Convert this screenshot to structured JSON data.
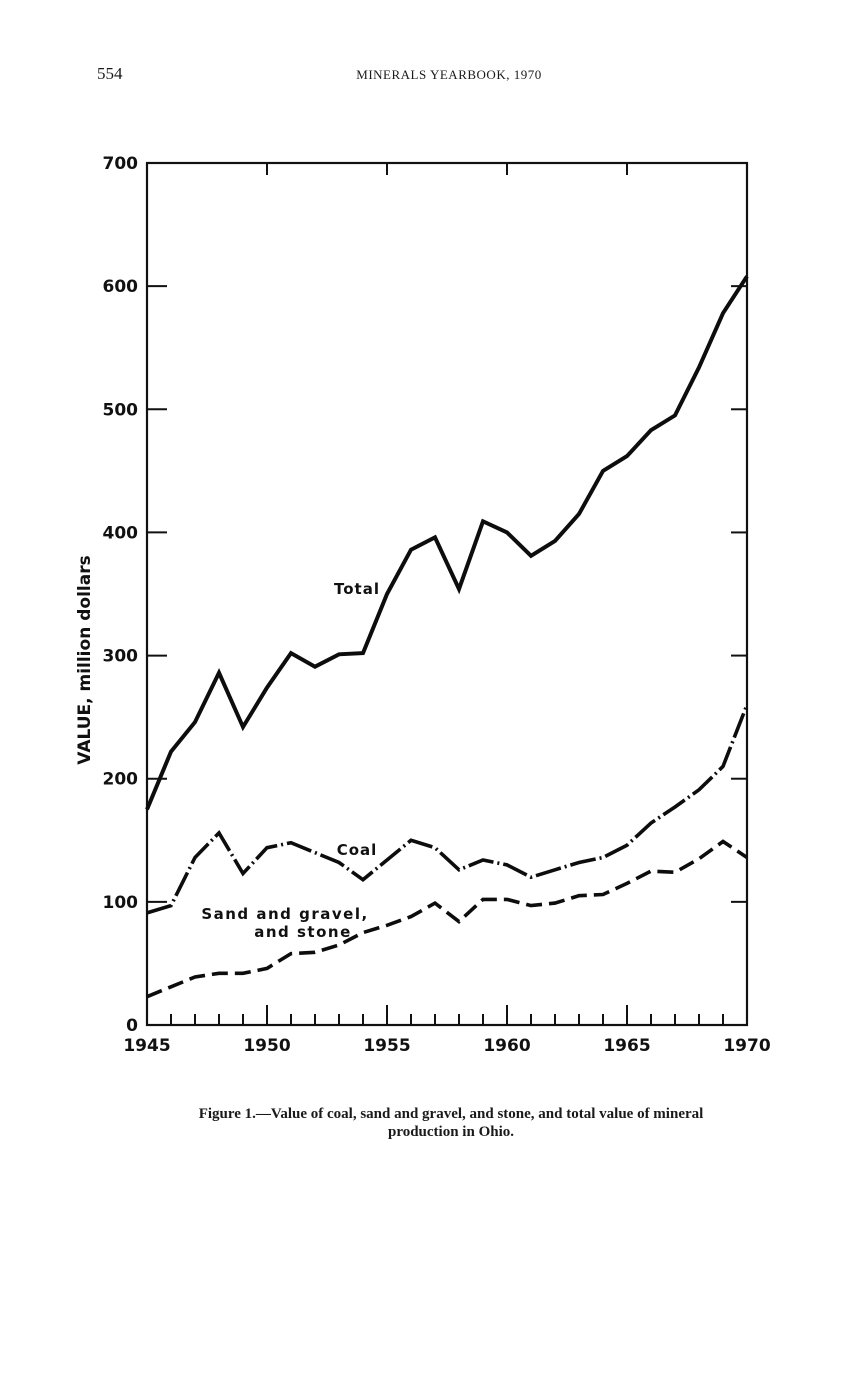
{
  "header": {
    "page_number": "554",
    "running_title": "MINERALS YEARBOOK, 1970"
  },
  "caption": {
    "line1": "Figure 1.—Value of coal, sand and gravel, and stone, and total value of mineral",
    "line2": "production in Ohio."
  },
  "chart_data": {
    "type": "line",
    "title": "Value of coal, sand and gravel, and stone, and total value of mineral production in Ohio",
    "xlabel": "",
    "ylabel": "VALUE, million dollars",
    "xlim": [
      1945,
      1970
    ],
    "ylim": [
      0,
      700
    ],
    "x_ticks": [
      "1945",
      "1950",
      "1955",
      "1960",
      "1965",
      "1970"
    ],
    "y_ticks": [
      "0",
      "100",
      "200",
      "300",
      "400",
      "500",
      "600",
      "700"
    ],
    "grid": false,
    "x": [
      1945,
      1946,
      1947,
      1948,
      1949,
      1950,
      1951,
      1952,
      1953,
      1954,
      1955,
      1956,
      1957,
      1958,
      1959,
      1960,
      1961,
      1962,
      1963,
      1964,
      1965,
      1966,
      1967,
      1968,
      1969,
      1970
    ],
    "series": [
      {
        "name": "Total",
        "label": "Total",
        "style": "solid",
        "values": [
          175,
          222,
          246,
          286,
          242,
          274,
          302,
          291,
          301,
          302,
          350,
          386,
          396,
          354,
          409,
          400,
          381,
          393,
          415,
          450,
          462,
          483,
          495,
          534,
          578,
          608
        ]
      },
      {
        "name": "Coal",
        "label": "Coal",
        "style": "dash-dot",
        "values": [
          91,
          97,
          136,
          156,
          123,
          144,
          148,
          140,
          132,
          118,
          134,
          150,
          144,
          126,
          134,
          130,
          120,
          126,
          132,
          136,
          146,
          164,
          177,
          191,
          210,
          260
        ]
      },
      {
        "name": "Sand and gravel, and stone",
        "label_line1": "Sand and gravel,",
        "label_line2": "and stone",
        "style": "dashed",
        "values": [
          23,
          31,
          39,
          42,
          42,
          46,
          58,
          59,
          65,
          75,
          81,
          88,
          99,
          84,
          102,
          102,
          97,
          99,
          105,
          106,
          115,
          125,
          124,
          135,
          149,
          136
        ]
      }
    ]
  }
}
